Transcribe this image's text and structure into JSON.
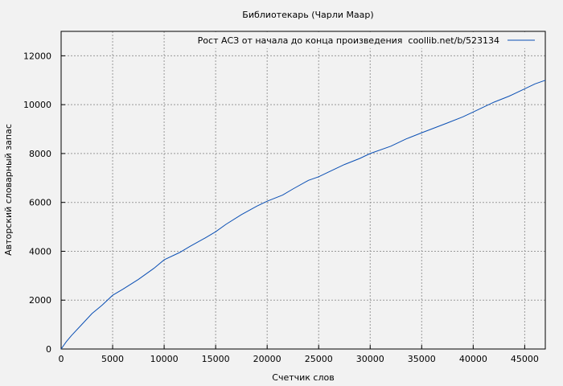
{
  "chart_data": {
    "type": "line",
    "title": "Библиотекарь (Чарли Маар)",
    "xlabel": "Счетчик слов",
    "ylabel": "Авторский словарный запас",
    "xlim": [
      0,
      47000
    ],
    "ylim": [
      0,
      13000
    ],
    "xticks": [
      0,
      5000,
      10000,
      15000,
      20000,
      25000,
      30000,
      35000,
      40000,
      45000
    ],
    "yticks": [
      0,
      2000,
      4000,
      6000,
      8000,
      10000,
      12000
    ],
    "grid": true,
    "legend_position": "top-right",
    "series": [
      {
        "name": "Рост АСЗ от начала до конца произведения  coollib.net/b/523134",
        "color": "#0a4fb4",
        "x": [
          0,
          500,
          1000,
          2000,
          3000,
          4000,
          5000,
          6000,
          7500,
          9000,
          10000,
          11500,
          12500,
          14000,
          15000,
          16000,
          17500,
          19000,
          20000,
          21500,
          22500,
          24000,
          25000,
          26000,
          27500,
          29000,
          30000,
          32000,
          33500,
          35000,
          37500,
          39000,
          40000,
          42000,
          43500,
          45000,
          46000,
          47000
        ],
        "y": [
          0,
          300,
          550,
          1000,
          1450,
          1800,
          2200,
          2450,
          2850,
          3300,
          3650,
          3950,
          4200,
          4550,
          4800,
          5100,
          5500,
          5850,
          6050,
          6300,
          6550,
          6900,
          7050,
          7250,
          7550,
          7800,
          8000,
          8300,
          8600,
          8850,
          9250,
          9500,
          9700,
          10100,
          10350,
          10650,
          10850,
          11000
        ]
      }
    ]
  }
}
